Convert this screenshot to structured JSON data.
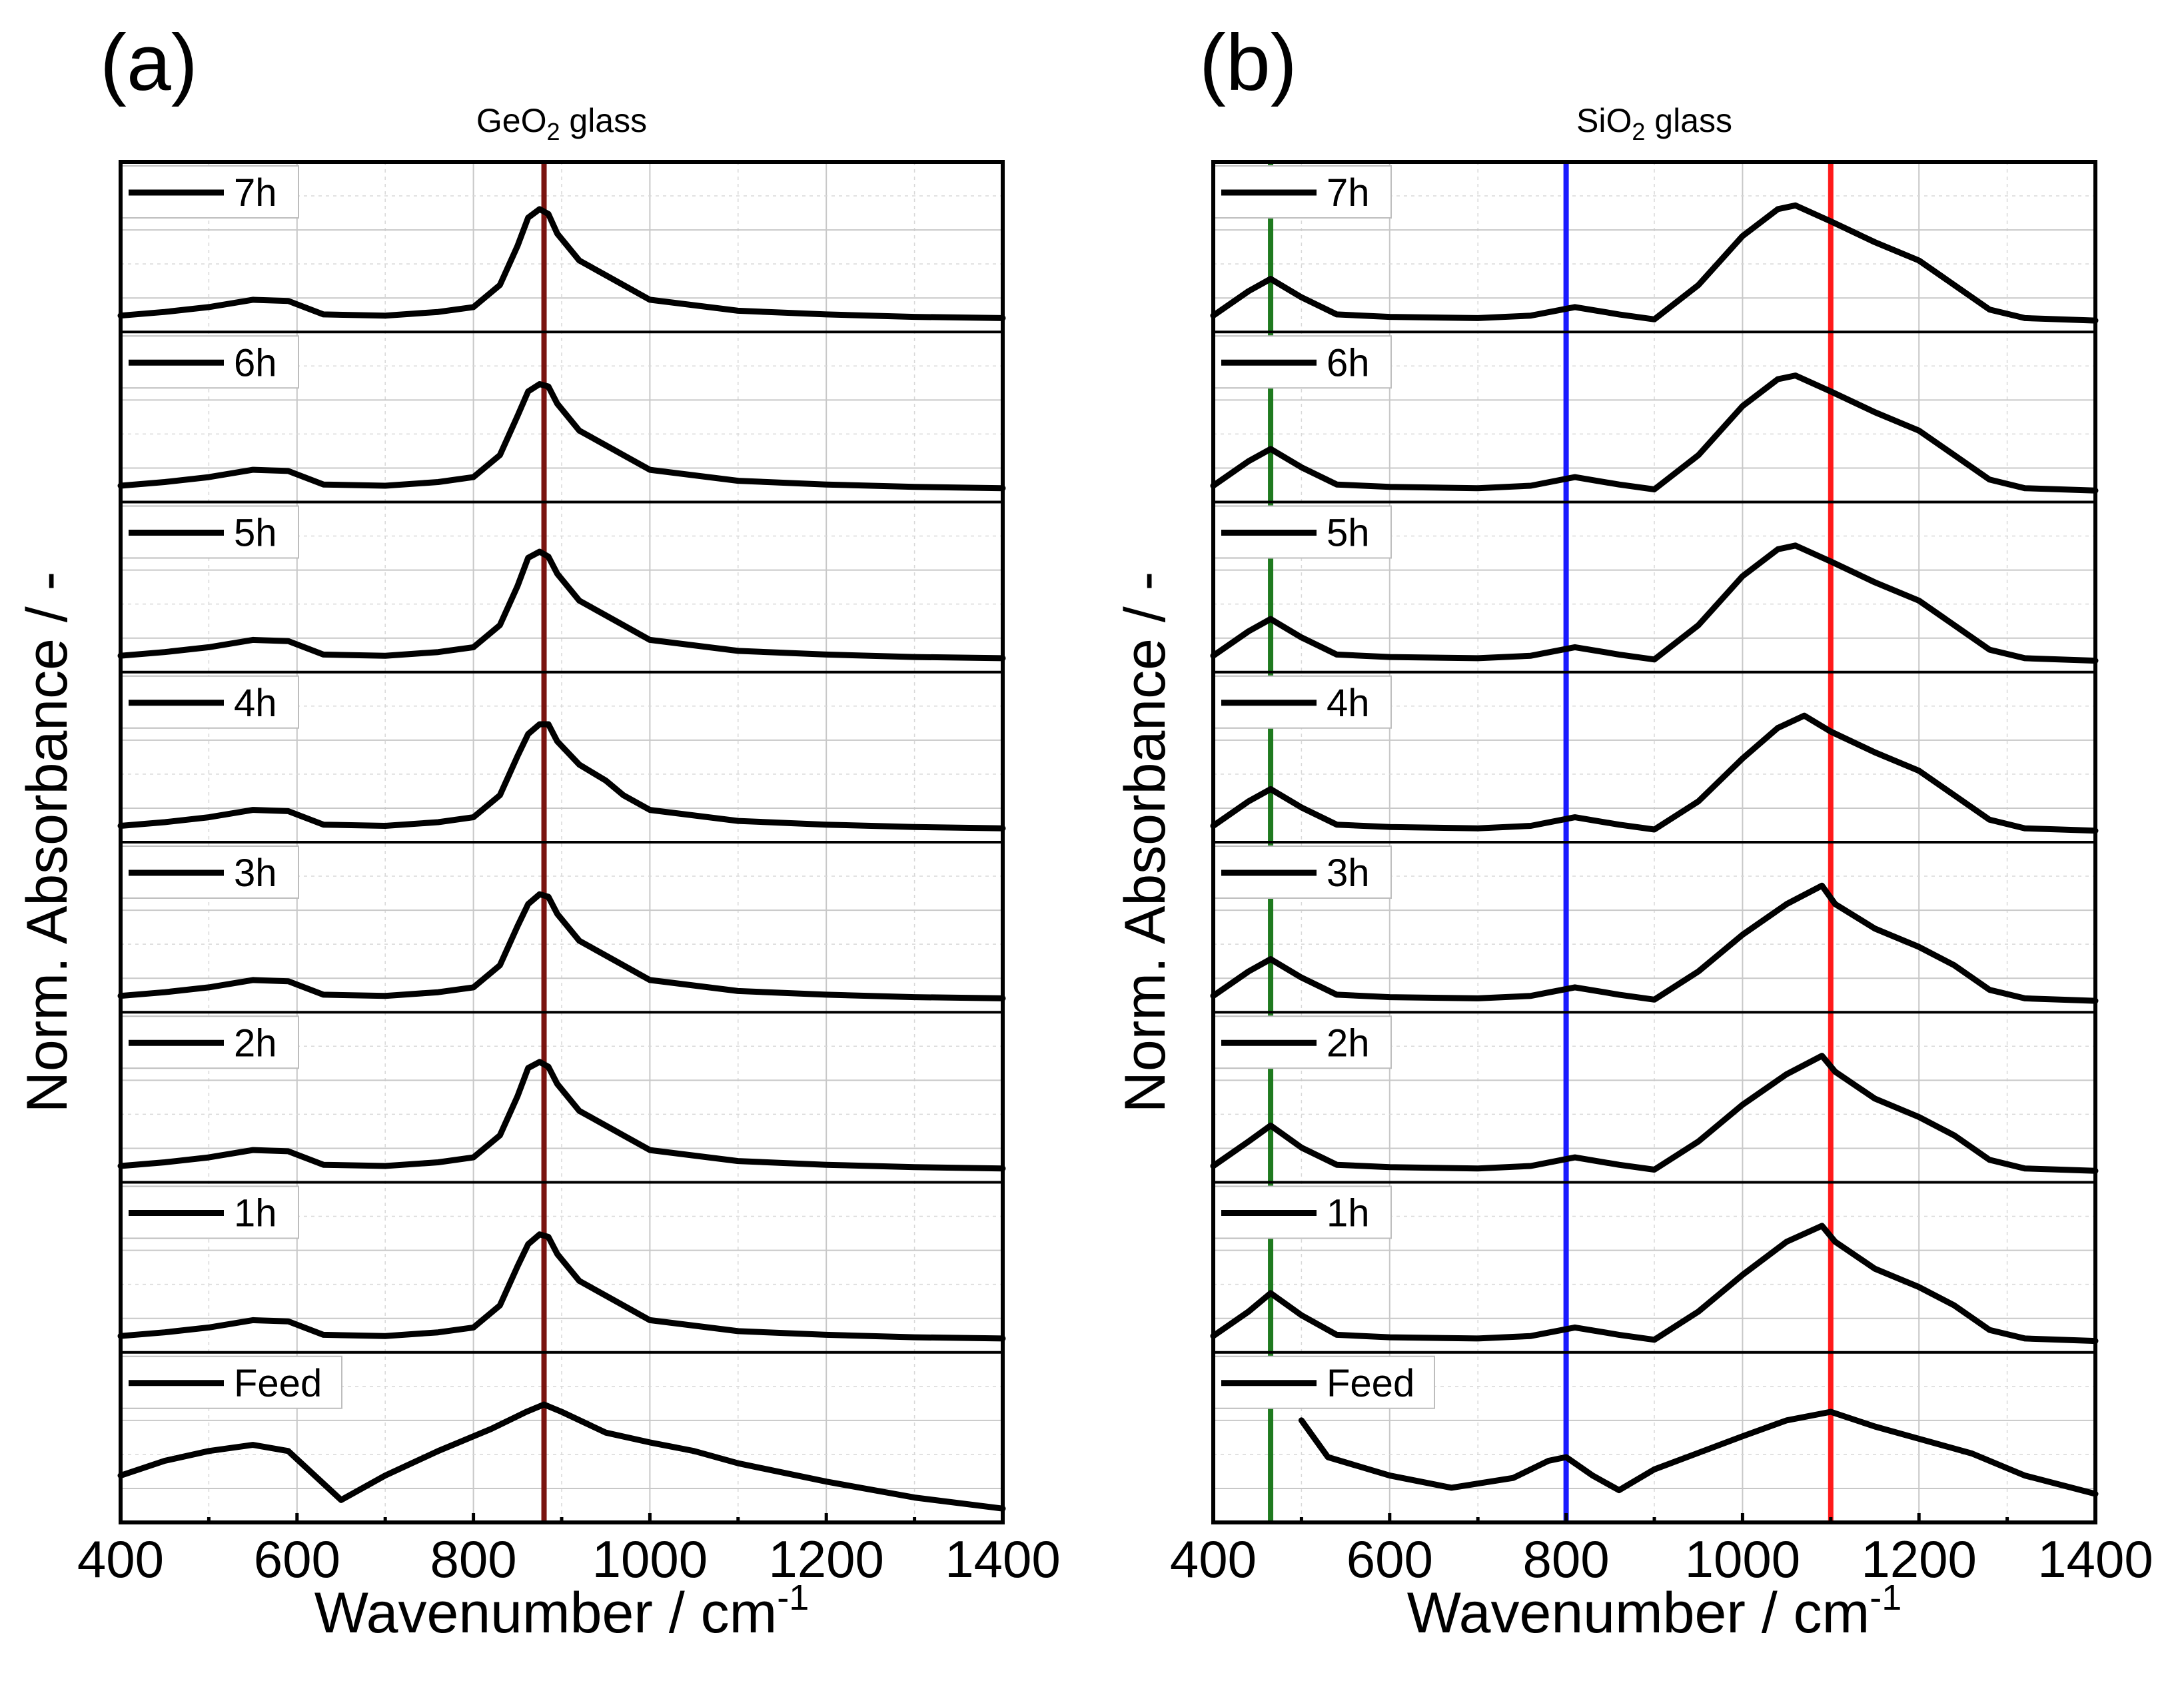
{
  "chart_data": [
    {
      "type": "line",
      "panel_label": "(a)",
      "title": "GeO2 glass",
      "title_main": "GeO",
      "title_sub": "2",
      "title_tail": " glass",
      "xlabel": "Wavenumber / cm",
      "xlabel_sup": "-1",
      "ylabel": "Norm. Absorbance / -",
      "xlim": [
        400,
        1400
      ],
      "xticks": [
        "400",
        "600",
        "800",
        "1000",
        "1200",
        "1400"
      ],
      "layout": "stacked offset panels, one spectrum per sub-panel, legend top-left of each sub-panel",
      "reference_lines": [
        {
          "x": 880,
          "color": "#7a1410"
        }
      ],
      "series": [
        {
          "name": "7h",
          "x": [
            400,
            450,
            500,
            550,
            590,
            630,
            700,
            760,
            800,
            830,
            850,
            862,
            875,
            885,
            895,
            920,
            950,
            970,
            1000,
            1100,
            1200,
            1300,
            1400
          ],
          "values": [
            0.05,
            0.08,
            0.12,
            0.18,
            0.17,
            0.06,
            0.05,
            0.08,
            0.12,
            0.3,
            0.62,
            0.85,
            0.92,
            0.88,
            0.72,
            0.5,
            0.38,
            0.3,
            0.18,
            0.09,
            0.06,
            0.04,
            0.03
          ]
        },
        {
          "name": "6h",
          "x": [
            400,
            450,
            500,
            550,
            590,
            630,
            700,
            760,
            800,
            830,
            850,
            862,
            875,
            885,
            895,
            920,
            950,
            970,
            1000,
            1100,
            1200,
            1300,
            1400
          ],
          "values": [
            0.05,
            0.08,
            0.12,
            0.18,
            0.17,
            0.06,
            0.05,
            0.08,
            0.12,
            0.3,
            0.62,
            0.82,
            0.88,
            0.86,
            0.72,
            0.5,
            0.38,
            0.3,
            0.18,
            0.09,
            0.06,
            0.04,
            0.03
          ]
        },
        {
          "name": "5h",
          "x": [
            400,
            450,
            500,
            550,
            590,
            630,
            700,
            760,
            800,
            830,
            850,
            862,
            875,
            885,
            895,
            920,
            950,
            970,
            1000,
            1100,
            1200,
            1300,
            1400
          ],
          "values": [
            0.05,
            0.08,
            0.12,
            0.18,
            0.17,
            0.06,
            0.05,
            0.08,
            0.12,
            0.3,
            0.62,
            0.85,
            0.9,
            0.86,
            0.72,
            0.5,
            0.38,
            0.3,
            0.18,
            0.09,
            0.06,
            0.04,
            0.03
          ]
        },
        {
          "name": "4h",
          "x": [
            400,
            450,
            500,
            550,
            590,
            630,
            700,
            760,
            800,
            830,
            850,
            862,
            875,
            885,
            895,
            920,
            950,
            970,
            1000,
            1100,
            1200,
            1300,
            1400
          ],
          "values": [
            0.05,
            0.08,
            0.12,
            0.18,
            0.17,
            0.06,
            0.05,
            0.08,
            0.12,
            0.3,
            0.62,
            0.8,
            0.88,
            0.88,
            0.74,
            0.55,
            0.42,
            0.3,
            0.18,
            0.09,
            0.06,
            0.04,
            0.03
          ]
        },
        {
          "name": "3h",
          "x": [
            400,
            450,
            500,
            550,
            590,
            630,
            700,
            760,
            800,
            830,
            850,
            862,
            875,
            885,
            895,
            920,
            950,
            970,
            1000,
            1100,
            1200,
            1300,
            1400
          ],
          "values": [
            0.05,
            0.08,
            0.12,
            0.18,
            0.17,
            0.06,
            0.05,
            0.08,
            0.12,
            0.3,
            0.62,
            0.8,
            0.88,
            0.86,
            0.72,
            0.5,
            0.38,
            0.3,
            0.18,
            0.09,
            0.06,
            0.04,
            0.03
          ]
        },
        {
          "name": "2h",
          "x": [
            400,
            450,
            500,
            550,
            590,
            630,
            700,
            760,
            800,
            830,
            850,
            862,
            875,
            885,
            895,
            920,
            950,
            970,
            1000,
            1100,
            1200,
            1300,
            1400
          ],
          "values": [
            0.05,
            0.08,
            0.12,
            0.18,
            0.17,
            0.06,
            0.05,
            0.08,
            0.12,
            0.3,
            0.62,
            0.85,
            0.9,
            0.86,
            0.72,
            0.5,
            0.38,
            0.3,
            0.18,
            0.09,
            0.06,
            0.04,
            0.03
          ]
        },
        {
          "name": "1h",
          "x": [
            400,
            450,
            500,
            550,
            590,
            630,
            700,
            760,
            800,
            830,
            850,
            862,
            875,
            885,
            895,
            920,
            950,
            970,
            1000,
            1100,
            1200,
            1300,
            1400
          ],
          "values": [
            0.05,
            0.08,
            0.12,
            0.18,
            0.17,
            0.06,
            0.05,
            0.08,
            0.12,
            0.3,
            0.62,
            0.8,
            0.88,
            0.86,
            0.72,
            0.5,
            0.38,
            0.3,
            0.18,
            0.09,
            0.06,
            0.04,
            0.03
          ]
        },
        {
          "name": "Feed",
          "x": [
            400,
            450,
            500,
            550,
            590,
            620,
            650,
            700,
            760,
            820,
            860,
            880,
            900,
            950,
            1000,
            1050,
            1100,
            1200,
            1300,
            1400
          ],
          "values": [
            0.3,
            0.42,
            0.5,
            0.55,
            0.5,
            0.3,
            0.1,
            0.3,
            0.5,
            0.68,
            0.82,
            0.88,
            0.82,
            0.65,
            0.57,
            0.5,
            0.4,
            0.25,
            0.12,
            0.03
          ]
        }
      ]
    },
    {
      "type": "line",
      "panel_label": "(b)",
      "title": "SiO2 glass",
      "title_main": "SiO",
      "title_sub": "2",
      "title_tail": " glass",
      "xlabel": "Wavenumber / cm",
      "xlabel_sup": "-1",
      "ylabel": "Norm. Absorbance / -",
      "xlim": [
        400,
        1400
      ],
      "xticks": [
        "400",
        "600",
        "800",
        "1000",
        "1200",
        "1400"
      ],
      "layout": "stacked offset panels, one spectrum per sub-panel, legend top-left of each sub-panel",
      "reference_lines": [
        {
          "x": 465,
          "color": "#1f7a1f"
        },
        {
          "x": 800,
          "color": "#1a1aff"
        },
        {
          "x": 1100,
          "color": "#ff1a1a"
        }
      ],
      "series": [
        {
          "name": "7h",
          "x": [
            400,
            440,
            465,
            500,
            540,
            600,
            700,
            760,
            810,
            860,
            900,
            950,
            1000,
            1040,
            1060,
            1100,
            1150,
            1200,
            1240,
            1280,
            1320,
            1400
          ],
          "values": [
            0.05,
            0.25,
            0.35,
            0.2,
            0.06,
            0.04,
            0.03,
            0.05,
            0.12,
            0.06,
            0.02,
            0.3,
            0.7,
            0.92,
            0.95,
            0.82,
            0.65,
            0.5,
            0.3,
            0.1,
            0.03,
            0.01
          ]
        },
        {
          "name": "6h",
          "x": [
            400,
            440,
            465,
            500,
            540,
            600,
            700,
            760,
            810,
            860,
            900,
            950,
            1000,
            1040,
            1060,
            1100,
            1150,
            1200,
            1240,
            1280,
            1320,
            1400
          ],
          "values": [
            0.05,
            0.25,
            0.35,
            0.2,
            0.06,
            0.04,
            0.03,
            0.05,
            0.12,
            0.06,
            0.02,
            0.3,
            0.7,
            0.92,
            0.95,
            0.82,
            0.65,
            0.5,
            0.3,
            0.1,
            0.03,
            0.01
          ]
        },
        {
          "name": "5h",
          "x": [
            400,
            440,
            465,
            500,
            540,
            600,
            700,
            760,
            810,
            860,
            900,
            950,
            1000,
            1040,
            1060,
            1100,
            1150,
            1200,
            1240,
            1280,
            1320,
            1400
          ],
          "values": [
            0.05,
            0.25,
            0.35,
            0.2,
            0.06,
            0.04,
            0.03,
            0.05,
            0.12,
            0.06,
            0.02,
            0.3,
            0.7,
            0.92,
            0.95,
            0.82,
            0.65,
            0.5,
            0.3,
            0.1,
            0.03,
            0.01
          ]
        },
        {
          "name": "4h",
          "x": [
            400,
            440,
            465,
            500,
            540,
            600,
            700,
            760,
            810,
            860,
            900,
            950,
            1000,
            1040,
            1070,
            1100,
            1150,
            1200,
            1240,
            1280,
            1320,
            1400
          ],
          "values": [
            0.05,
            0.25,
            0.35,
            0.2,
            0.06,
            0.04,
            0.03,
            0.05,
            0.12,
            0.06,
            0.02,
            0.25,
            0.6,
            0.85,
            0.95,
            0.82,
            0.65,
            0.5,
            0.3,
            0.1,
            0.03,
            0.01
          ]
        },
        {
          "name": "3h",
          "x": [
            400,
            440,
            465,
            500,
            540,
            600,
            700,
            760,
            810,
            860,
            900,
            950,
            1000,
            1050,
            1090,
            1105,
            1150,
            1200,
            1240,
            1280,
            1320,
            1400
          ],
          "values": [
            0.05,
            0.25,
            0.35,
            0.2,
            0.06,
            0.04,
            0.03,
            0.05,
            0.12,
            0.06,
            0.02,
            0.25,
            0.55,
            0.8,
            0.95,
            0.8,
            0.6,
            0.45,
            0.3,
            0.1,
            0.03,
            0.01
          ]
        },
        {
          "name": "2h",
          "x": [
            400,
            440,
            465,
            500,
            540,
            600,
            700,
            760,
            810,
            860,
            900,
            950,
            1000,
            1050,
            1090,
            1105,
            1150,
            1200,
            1240,
            1280,
            1320,
            1400
          ],
          "values": [
            0.05,
            0.25,
            0.38,
            0.2,
            0.06,
            0.04,
            0.03,
            0.05,
            0.12,
            0.06,
            0.02,
            0.25,
            0.55,
            0.8,
            0.95,
            0.82,
            0.6,
            0.45,
            0.3,
            0.1,
            0.03,
            0.01
          ]
        },
        {
          "name": "1h",
          "x": [
            400,
            440,
            465,
            500,
            540,
            600,
            700,
            760,
            810,
            860,
            900,
            950,
            1000,
            1050,
            1090,
            1105,
            1150,
            1200,
            1240,
            1280,
            1320,
            1400
          ],
          "values": [
            0.05,
            0.25,
            0.4,
            0.22,
            0.06,
            0.04,
            0.03,
            0.05,
            0.12,
            0.06,
            0.02,
            0.25,
            0.55,
            0.82,
            0.95,
            0.82,
            0.6,
            0.45,
            0.3,
            0.1,
            0.03,
            0.01
          ]
        },
        {
          "name": "Feed",
          "x": [
            500,
            530,
            600,
            670,
            740,
            780,
            800,
            830,
            860,
            900,
            1000,
            1050,
            1100,
            1150,
            1200,
            1260,
            1320,
            1400
          ],
          "values": [
            0.75,
            0.45,
            0.3,
            0.2,
            0.28,
            0.42,
            0.45,
            0.3,
            0.18,
            0.35,
            0.62,
            0.75,
            0.82,
            0.7,
            0.6,
            0.48,
            0.3,
            0.15
          ]
        }
      ]
    }
  ]
}
